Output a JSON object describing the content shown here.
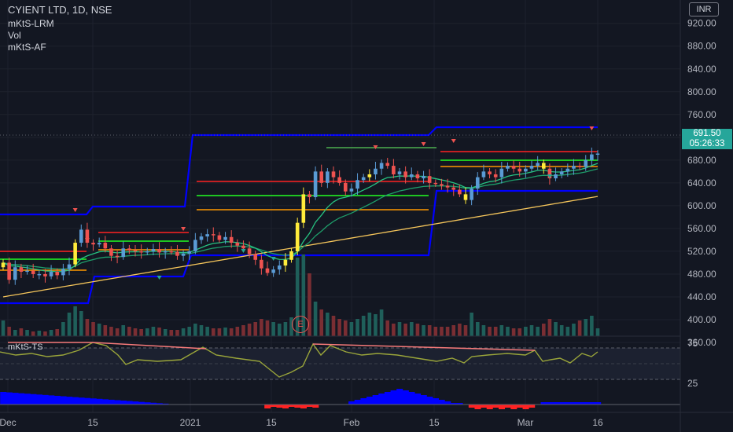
{
  "header": {
    "title": "CYIENT LTD, 1D, NSE",
    "indicators": [
      "mKtS-LRM",
      "Vol",
      "mKtS-AF"
    ],
    "currency": "INR"
  },
  "oscillator": {
    "label": "mKtS-TS"
  },
  "earnings_badge": "E",
  "last_price": {
    "price": "691.50",
    "countdown": "05:26:33"
  },
  "colors": {
    "background": "#131722",
    "up": "#26a69a",
    "down": "#ef5350",
    "highlight": "#ffeb3b",
    "channel": "#0000ff",
    "ema_fast": "#26c281",
    "ema_slow": "#f6c65b",
    "level_red": "#ff2222",
    "level_green": "#22ff22",
    "level_orange": "#ff9800",
    "ts_line": "#9aa53a"
  },
  "chart_data": [
    {
      "type": "candlestick",
      "title": "CYIENT LTD, 1D, NSE",
      "x_tick_labels": [
        "Dec",
        "15",
        "2021",
        "15",
        "Feb",
        "15",
        "Mar",
        "16"
      ],
      "y_tick_labels": [
        "920.00",
        "880.00",
        "840.00",
        "800.00",
        "760.00",
        "720.00",
        "680.00",
        "640.00",
        "600.00",
        "560.00",
        "520.00",
        "480.00",
        "440.00",
        "400.00",
        "360.00"
      ],
      "ylim": [
        340,
        935
      ],
      "close": [
        500,
        470,
        492,
        484,
        486,
        480,
        480,
        476,
        484,
        478,
        489,
        497,
        535,
        558,
        535,
        532,
        535,
        525,
        512,
        510,
        525,
        522,
        520,
        518,
        520,
        524,
        518,
        520,
        519,
        512,
        516,
        520,
        540,
        546,
        550,
        548,
        540,
        545,
        535,
        530,
        525,
        515,
        505,
        490,
        482,
        488,
        495,
        505,
        520,
        570,
        620,
        615,
        660,
        640,
        660,
        650,
        640,
        625,
        630,
        645,
        650,
        655,
        665,
        675,
        670,
        655,
        660,
        650,
        655,
        648,
        652,
        640,
        638,
        635,
        632,
        628,
        620,
        610,
        630,
        650,
        660,
        655,
        650,
        665,
        670,
        665,
        660,
        665,
        670,
        675,
        665,
        648,
        655,
        660,
        665,
        670,
        668,
        680,
        690,
        691.5
      ],
      "volume_bar_count": 100,
      "series": [
        {
          "name": "mKtS-LRM"
        },
        {
          "name": "Vol"
        },
        {
          "name": "mKtS-AF"
        }
      ]
    },
    {
      "type": "line",
      "name": "mKtS-TS",
      "y_tick_labels": [
        "75",
        "25"
      ],
      "ylim": [
        10,
        90
      ]
    }
  ]
}
